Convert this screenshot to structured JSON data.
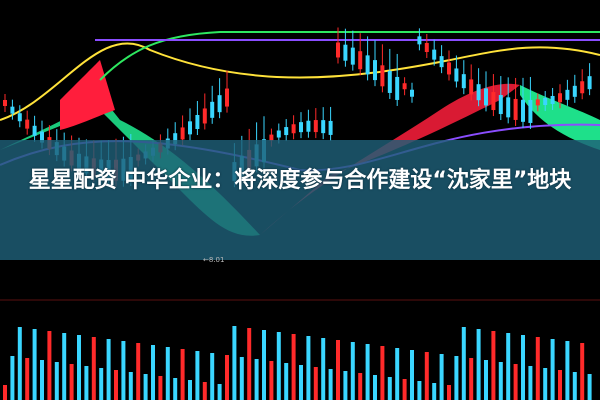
{
  "headline": {
    "text": "星星配资 中华企业：将深度参与合作建设“沈家里”地块"
  },
  "chart_annotation": {
    "low_price_label": "←8.01"
  },
  "colors": {
    "band": "#1e5f78",
    "up": "#ff2a2a",
    "down": "#3ad6ff",
    "cloud_green": "#1ee08a",
    "cloud_red": "#ff1e3c",
    "ma_yellow": "#ffe23a",
    "ma_purple": "#8a4dff"
  }
}
